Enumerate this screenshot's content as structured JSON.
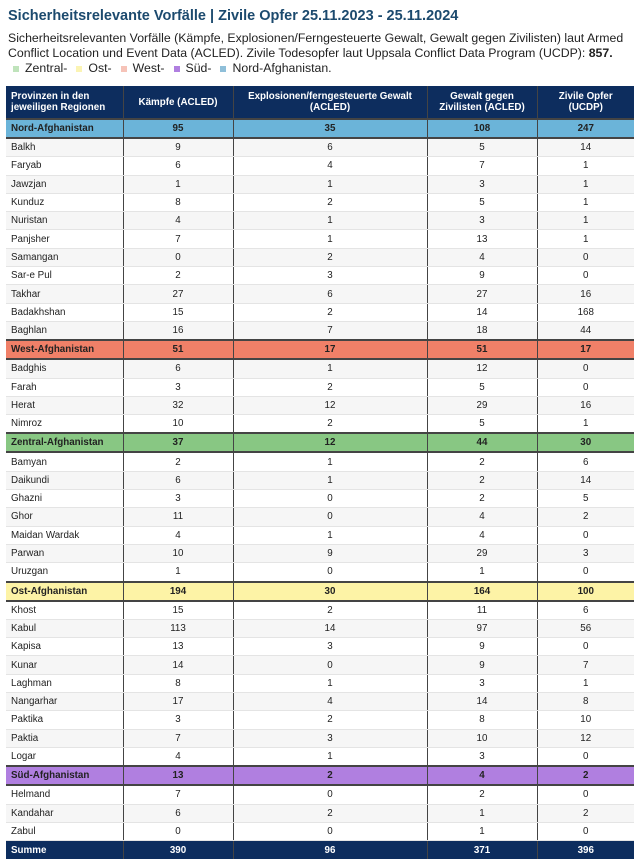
{
  "title": "Sicherheitsrelevante Vorfälle | Zivile Opfer 25.11.2023 - 25.11.2024",
  "description": "Sicherheitsrelevanten Vorfälle (Kämpfe, Explosionen/Ferngesteuerte Gewalt, Gewalt gegen Zivilisten) laut Armed Conflict Location und Event Data (ACLED). Zivile Todesopfer laut Uppsala Conflict Data Program (UCDP): ",
  "description_total": "857.",
  "legend": [
    {
      "label": "Zentral-",
      "color": "#bfe3bb"
    },
    {
      "label": "Ost-",
      "color": "#fbf4b4"
    },
    {
      "label": "West-",
      "color": "#f6c3b8"
    },
    {
      "label": "Süd-",
      "color": "#b07fe0"
    },
    {
      "label": "Nord-Afghanistan.",
      "color": "#8fbfd9"
    }
  ],
  "columns": [
    "Provinzen in den jeweiligen Regionen",
    "Kämpfe (ACLED)",
    "Explosionen/ferngesteuerte Gewalt (ACLED)",
    "Gewalt gegen Zivilisten (ACLED)",
    "Zivile Opfer (UCDP)"
  ],
  "regions": [
    {
      "name": "Nord-Afghanistan",
      "color": "#6bb4d9",
      "values": [
        "95",
        "35",
        "108",
        "247"
      ],
      "provinces": [
        [
          "Balkh",
          "9",
          "6",
          "5",
          "14"
        ],
        [
          "Faryab",
          "6",
          "4",
          "7",
          "1"
        ],
        [
          "Jawzjan",
          "1",
          "1",
          "3",
          "1"
        ],
        [
          "Kunduz",
          "8",
          "2",
          "5",
          "1"
        ],
        [
          "Nuristan",
          "4",
          "1",
          "3",
          "1"
        ],
        [
          "Panjsher",
          "7",
          "1",
          "13",
          "1"
        ],
        [
          "Samangan",
          "0",
          "2",
          "4",
          "0"
        ],
        [
          "Sar-e Pul",
          "2",
          "3",
          "9",
          "0"
        ],
        [
          "Takhar",
          "27",
          "6",
          "27",
          "16"
        ],
        [
          "Badakhshan",
          "15",
          "2",
          "14",
          "168"
        ],
        [
          "Baghlan",
          "16",
          "7",
          "18",
          "44"
        ]
      ]
    },
    {
      "name": "West-Afghanistan",
      "color": "#f08068",
      "values": [
        "51",
        "17",
        "51",
        "17"
      ],
      "provinces": [
        [
          "Badghis",
          "6",
          "1",
          "12",
          "0"
        ],
        [
          "Farah",
          "3",
          "2",
          "5",
          "0"
        ],
        [
          "Herat",
          "32",
          "12",
          "29",
          "16"
        ],
        [
          "Nimroz",
          "10",
          "2",
          "5",
          "1"
        ]
      ]
    },
    {
      "name": "Zentral-Afghanistan",
      "color": "#88c783",
      "values": [
        "37",
        "12",
        "44",
        "30"
      ],
      "provinces": [
        [
          "Bamyan",
          "2",
          "1",
          "2",
          "6"
        ],
        [
          "Daikundi",
          "6",
          "1",
          "2",
          "14"
        ],
        [
          "Ghazni",
          "3",
          "0",
          "2",
          "5"
        ],
        [
          "Ghor",
          "11",
          "0",
          "4",
          "2"
        ],
        [
          "Maidan Wardak",
          "4",
          "1",
          "4",
          "0"
        ],
        [
          "Parwan",
          "10",
          "9",
          "29",
          "3"
        ],
        [
          "Uruzgan",
          "1",
          "0",
          "1",
          "0"
        ]
      ]
    },
    {
      "name": "Ost-Afghanistan",
      "color": "#fdf3a6",
      "values": [
        "194",
        "30",
        "164",
        "100"
      ],
      "provinces": [
        [
          "Khost",
          "15",
          "2",
          "11",
          "6"
        ],
        [
          "Kabul",
          "113",
          "14",
          "97",
          "56"
        ],
        [
          "Kapisa",
          "13",
          "3",
          "9",
          "0"
        ],
        [
          "Kunar",
          "14",
          "0",
          "9",
          "7"
        ],
        [
          "Laghman",
          "8",
          "1",
          "3",
          "1"
        ],
        [
          "Nangarhar",
          "17",
          "4",
          "14",
          "8"
        ],
        [
          "Paktika",
          "3",
          "2",
          "8",
          "10"
        ],
        [
          "Paktia",
          "7",
          "3",
          "10",
          "12"
        ],
        [
          "Logar",
          "4",
          "1",
          "3",
          "0"
        ]
      ]
    },
    {
      "name": "Süd-Afghanistan",
      "color": "#b07fe0",
      "values": [
        "13",
        "2",
        "4",
        "2"
      ],
      "provinces": [
        [
          "Helmand",
          "7",
          "0",
          "2",
          "0"
        ],
        [
          "Kandahar",
          "6",
          "2",
          "1",
          "2"
        ],
        [
          "Zabul",
          "0",
          "0",
          "1",
          "0"
        ]
      ]
    }
  ],
  "total": {
    "label": "Summe",
    "values": [
      "390",
      "96",
      "371",
      "396"
    ]
  }
}
